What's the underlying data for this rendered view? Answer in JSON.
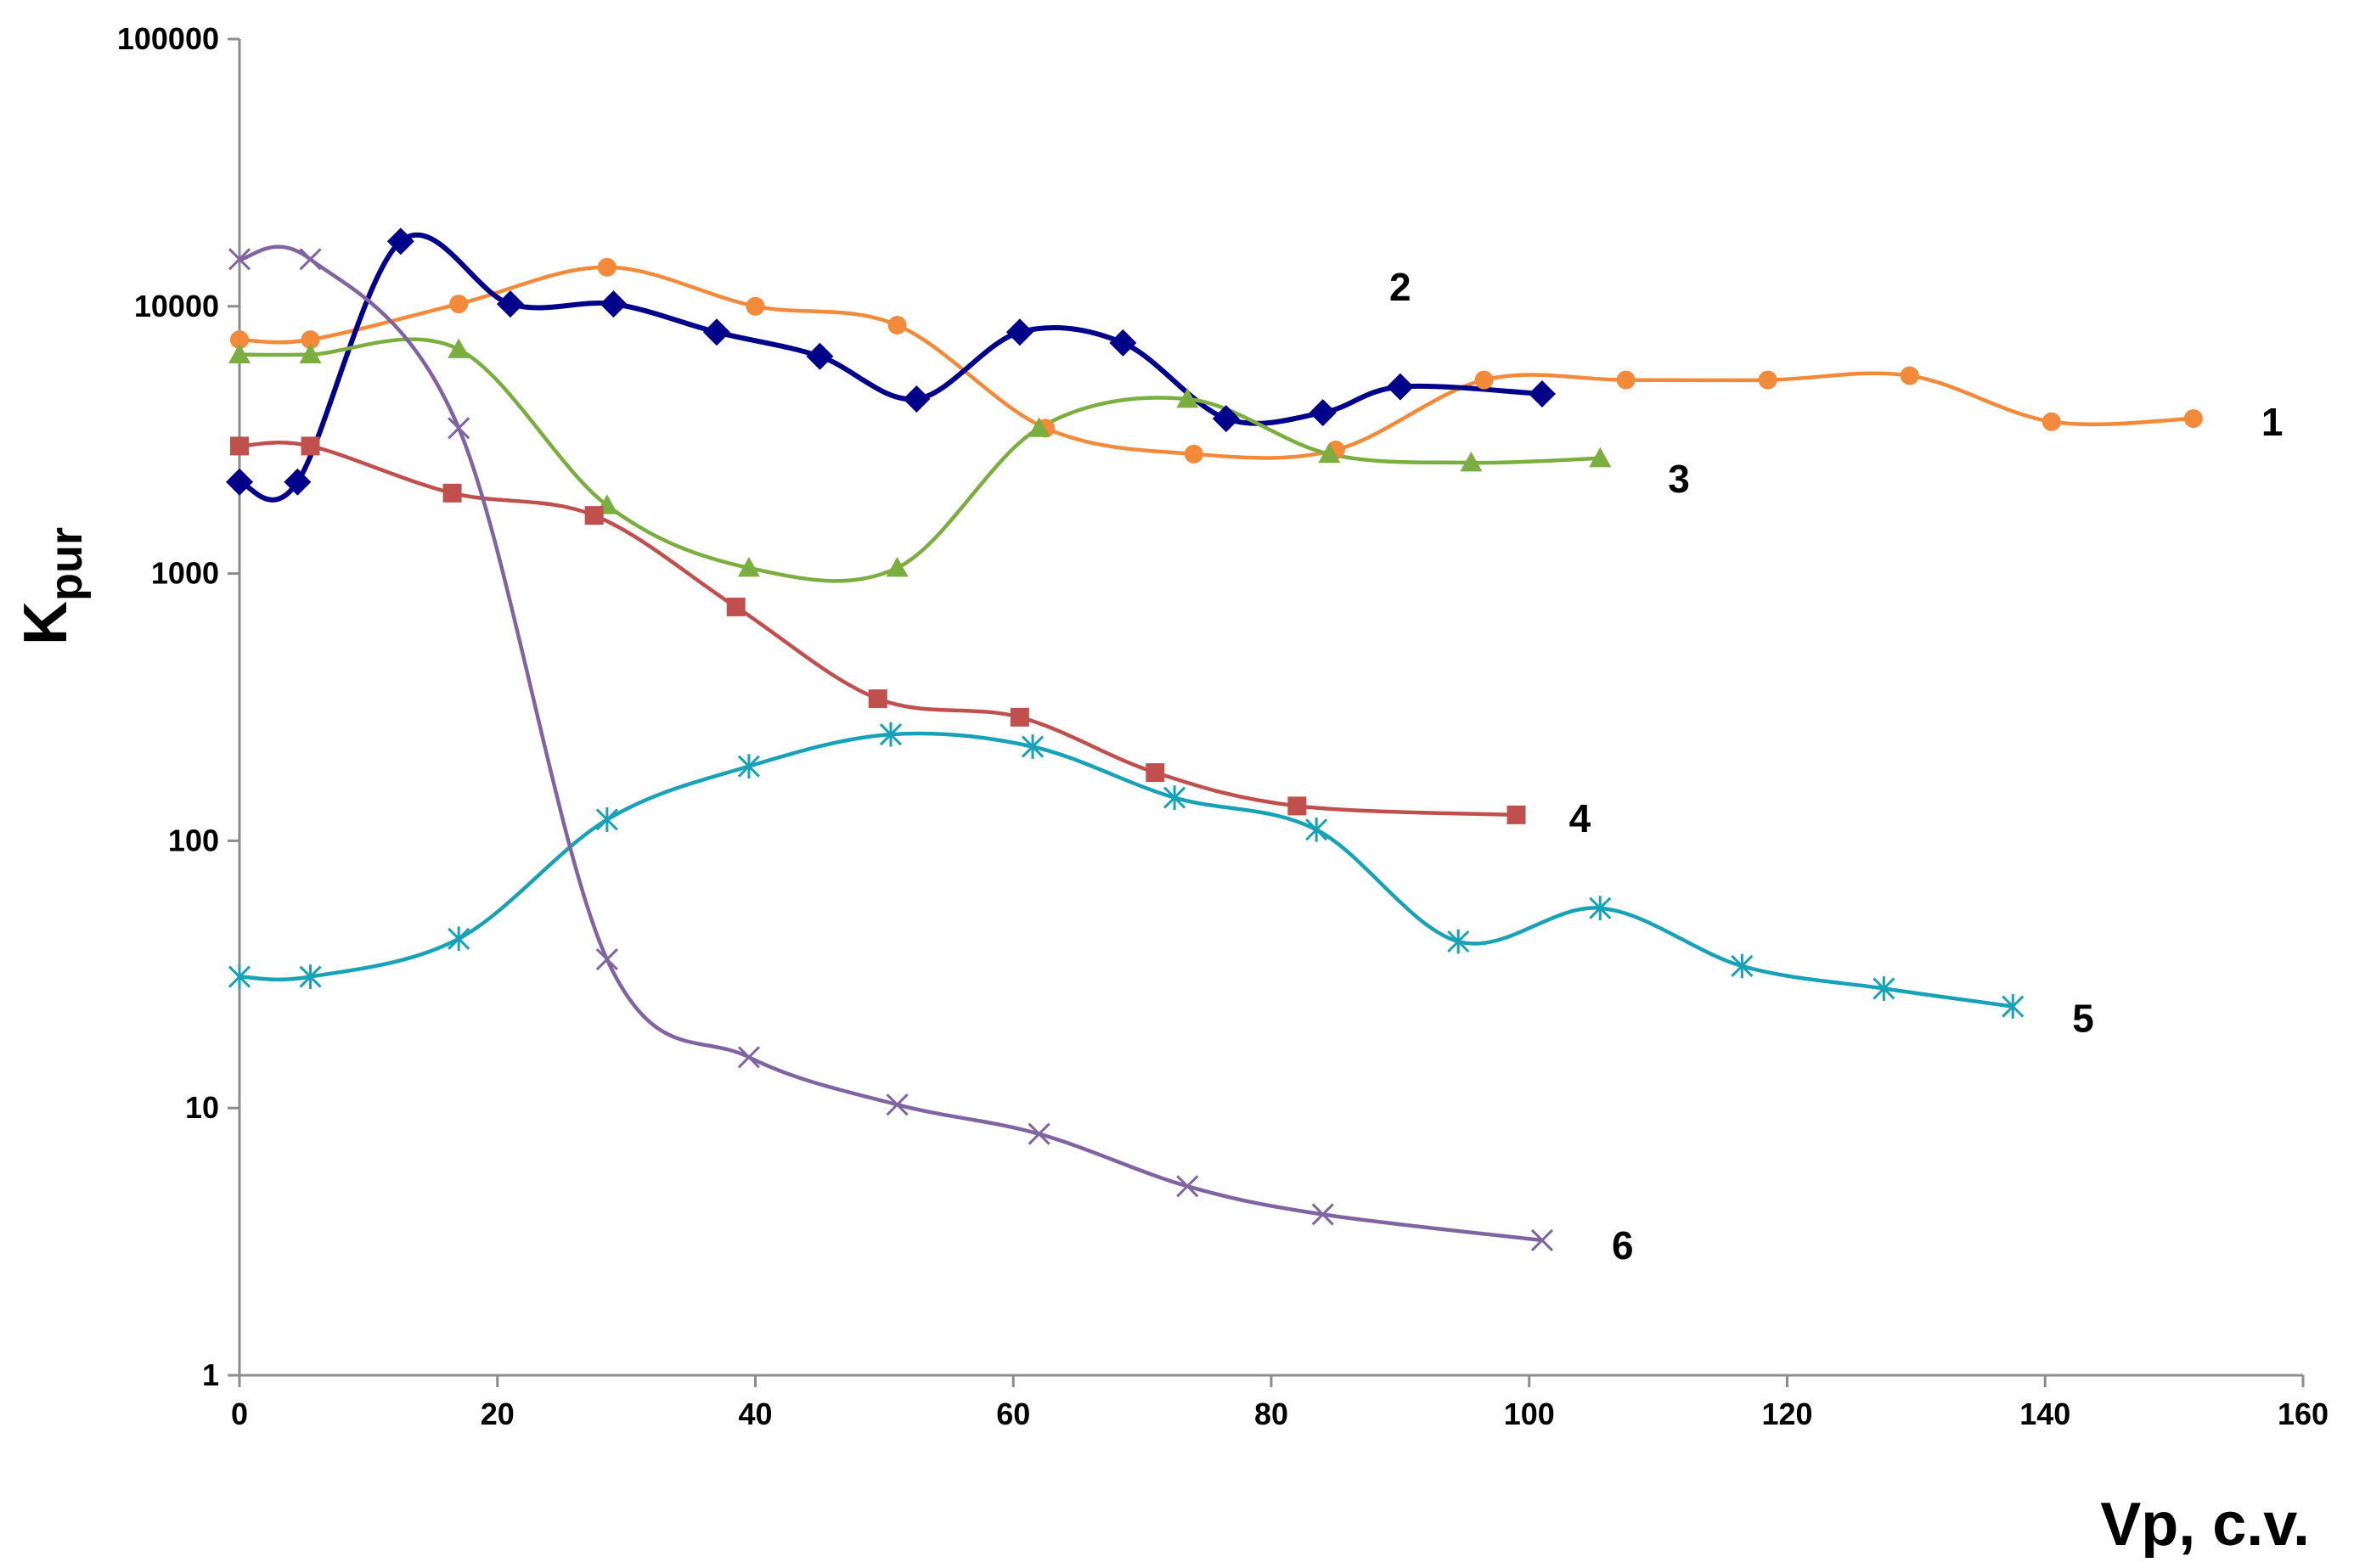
{
  "chart_data": {
    "type": "line",
    "title": "",
    "xlabel": "Vp, c.v.",
    "ylabel": "K",
    "ylabel_sub": "pur",
    "xlim": [
      0,
      160
    ],
    "ylim": [
      1,
      100000
    ],
    "yscale": "log",
    "xticks": [
      0,
      20,
      40,
      60,
      80,
      100,
      120,
      140,
      160
    ],
    "yticks": [
      1,
      10,
      100,
      1000,
      10000,
      100000
    ],
    "grid": false,
    "legend": "none",
    "series": [
      {
        "label": "1",
        "color": "#F28A3A",
        "marker": "circle",
        "x": [
          0,
          5.5,
          17,
          28.5,
          40,
          51,
          62.5,
          74,
          85,
          96.5,
          107.5,
          118.5,
          129.5,
          140.5,
          151.5
        ],
        "y": [
          7500,
          7500,
          10200,
          14000,
          10000,
          8500,
          3500,
          2800,
          2900,
          5300,
          5300,
          5300,
          5500,
          3700,
          3800
        ]
      },
      {
        "label": "2",
        "color": "#00008B",
        "marker": "diamond",
        "x": [
          0,
          4.5,
          12.5,
          21,
          29,
          37,
          45,
          52.5,
          60.5,
          68.5,
          76.5,
          84,
          90,
          101
        ],
        "y": [
          2200,
          2200,
          17500,
          10200,
          10200,
          8000,
          6500,
          4500,
          8000,
          7300,
          3800,
          4000,
          5000,
          4700
        ]
      },
      {
        "label": "3",
        "color": "#7AAE3E",
        "marker": "triangle",
        "x": [
          0,
          5.5,
          17,
          28.5,
          39.5,
          51,
          62,
          73.5,
          84.5,
          95.5,
          105.5
        ],
        "y": [
          6600,
          6600,
          6900,
          1800,
          1050,
          1050,
          3500,
          4500,
          2800,
          2600,
          2700
        ]
      },
      {
        "label": "4",
        "color": "#C0504D",
        "marker": "square",
        "x": [
          0,
          5.5,
          16.5,
          27.5,
          38.5,
          49.5,
          60.5,
          71,
          82,
          99
        ],
        "y": [
          3000,
          3000,
          2000,
          1650,
          750,
          340,
          290,
          180,
          135,
          125
        ]
      },
      {
        "label": "5",
        "color": "#17A2B8",
        "marker": "star",
        "x": [
          0,
          5.5,
          17,
          28.5,
          39.5,
          50.5,
          61.5,
          72.5,
          83.5,
          94.5,
          105.5,
          116.5,
          127.5,
          137.5
        ],
        "y": [
          31,
          31,
          43,
          120,
          190,
          250,
          225,
          145,
          110,
          42,
          56,
          34,
          28,
          24
        ]
      },
      {
        "label": "6",
        "color": "#8064A2",
        "marker": "x",
        "x": [
          0,
          5.5,
          17,
          28.5,
          39.5,
          51,
          62,
          73.5,
          84,
          101
        ],
        "y": [
          15000,
          15000,
          3500,
          36,
          15.5,
          10.3,
          8,
          5.1,
          4,
          3.2
        ]
      }
    ]
  }
}
